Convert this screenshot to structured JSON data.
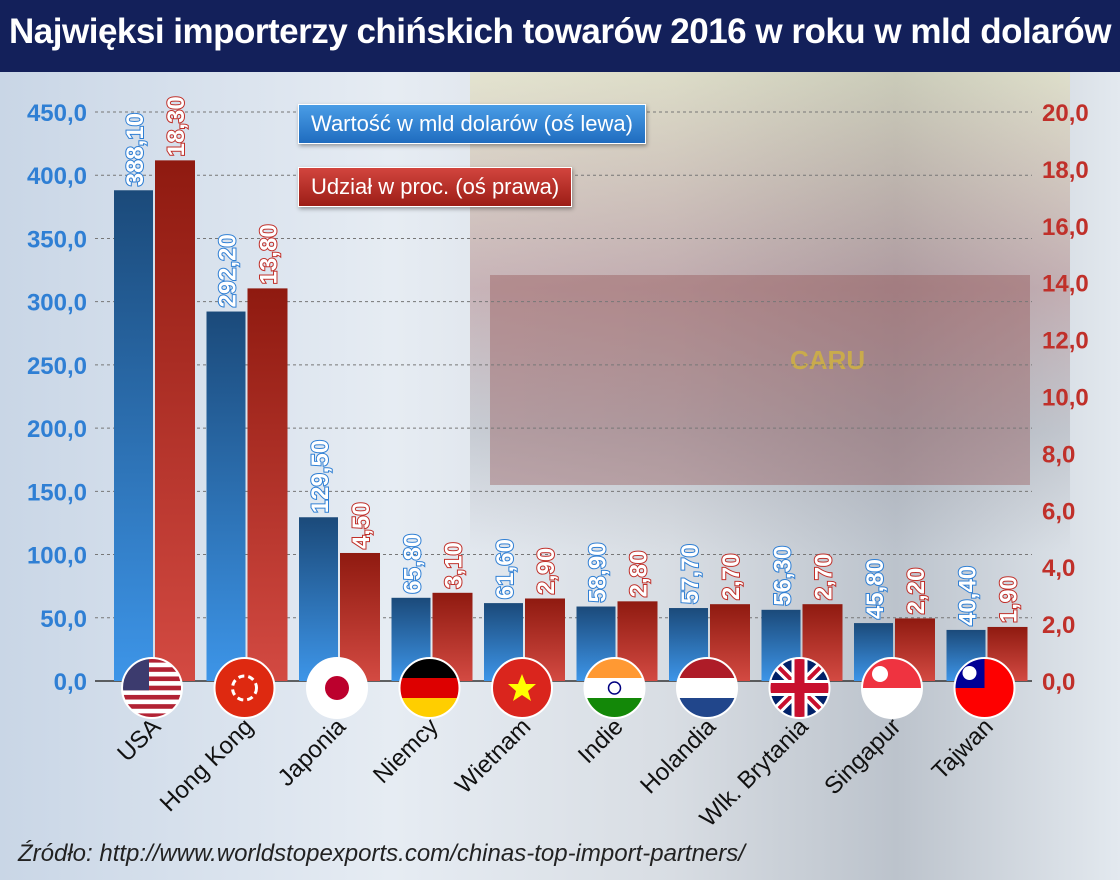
{
  "title": "Najwięksi importerzy chińskich towarów 2016 w roku w mld dolarów",
  "source": "Źródło: http://www.worldstopexports.com/chinas-top-import-partners/",
  "background_text": "CARU",
  "colors": {
    "blue": "#2f7fd4",
    "blue_dark": "#1b4a7a",
    "red": "#c33a32",
    "red_dark": "#8f1a10",
    "left_axis": "#2f7fd4",
    "right_axis": "#c0302a",
    "title_bg": "#13205a"
  },
  "chart_data": {
    "type": "bar",
    "title": "Najwięksi importerzy chińskich towarów 2016 w roku w mld dolarów",
    "categories": [
      "USA",
      "Hong Kong",
      "Japonia",
      "Niemcy",
      "Wietnam",
      "Indie",
      "Holandia",
      "Wlk. Brytania",
      "Singapur",
      "Tajwan"
    ],
    "flags": [
      "us-flag-icon",
      "hong-kong-flag-icon",
      "japan-flag-icon",
      "germany-flag-icon",
      "vietnam-flag-icon",
      "india-flag-icon",
      "netherlands-flag-icon",
      "uk-flag-icon",
      "singapore-flag-icon",
      "taiwan-flag-icon"
    ],
    "series": [
      {
        "name": "Wartość w mld dolarów (oś lewa)",
        "axis": "left",
        "values": [
          388.1,
          292.2,
          129.5,
          65.8,
          61.6,
          58.9,
          57.7,
          56.3,
          45.8,
          40.4
        ],
        "labels": [
          "388,10",
          "292,20",
          "129,50",
          "65,80",
          "61,60",
          "58,90",
          "57,70",
          "56,30",
          "45,80",
          "40,40"
        ]
      },
      {
        "name": "Udział w proc. (oś prawa)",
        "axis": "right",
        "values": [
          18.3,
          13.8,
          4.5,
          3.1,
          2.9,
          2.8,
          2.7,
          2.7,
          2.2,
          1.9
        ],
        "labels": [
          "18,30",
          "13,80",
          "4,50",
          "3,10",
          "2,90",
          "2,80",
          "2,70",
          "2,70",
          "2,20",
          "1,90"
        ]
      }
    ],
    "left_axis": {
      "range": [
        0,
        450
      ],
      "ticks": [
        "0,0",
        "50,0",
        "100,0",
        "150,0",
        "200,0",
        "250,0",
        "300,0",
        "350,0",
        "400,0",
        "450,0"
      ]
    },
    "right_axis": {
      "range": [
        0,
        20
      ],
      "ticks": [
        "0,0",
        "2,0",
        "4,0",
        "6,0",
        "8,0",
        "10,0",
        "12,0",
        "14,0",
        "16,0",
        "18,0",
        "20,0"
      ]
    },
    "grid": true,
    "legend_position": "top-center"
  }
}
